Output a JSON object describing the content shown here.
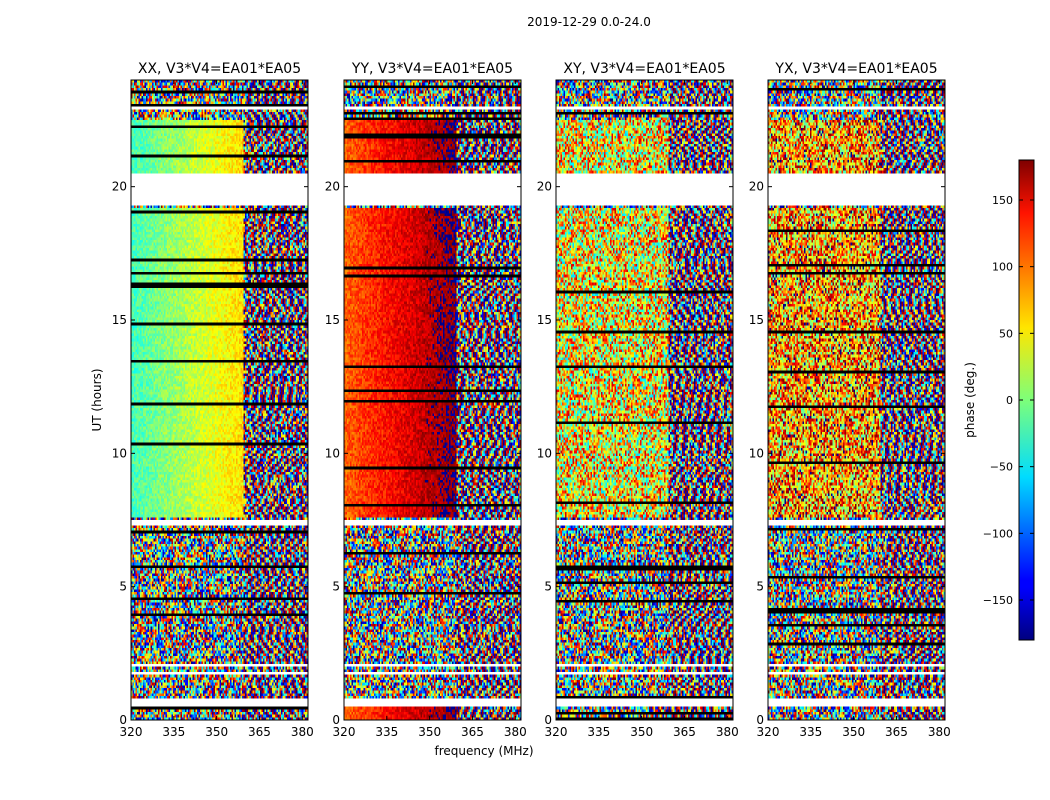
{
  "chart_data": {
    "type": "heatmap",
    "suptitle": "2019-12-29 0.0-24.0",
    "xlabel": "frequency (MHz)",
    "ylabel": "UT (hours)",
    "xlim": [
      320,
      382
    ],
    "ylim": [
      0,
      24
    ],
    "xticks": [
      320,
      335,
      350,
      365,
      380
    ],
    "yticks": [
      0,
      5,
      10,
      15,
      20
    ],
    "panels": [
      {
        "title": "XX, V3*V4=EA01*EA05",
        "pol": "XX"
      },
      {
        "title": "YY, V3*V4=EA01*EA05",
        "pol": "YY"
      },
      {
        "title": "XY, V3*V4=EA01*EA05",
        "pol": "XY"
      },
      {
        "title": "YX, V3*V4=EA01*EA05",
        "pol": "YX"
      }
    ],
    "colorbar": {
      "label": "phase (deg.)",
      "range": [
        -180,
        180
      ],
      "ticks": [
        -150,
        -100,
        -50,
        0,
        50,
        100,
        150
      ],
      "tick_labels": [
        "−150",
        "−100",
        "−50",
        "0",
        "50",
        "100",
        "150"
      ],
      "colormap": "jet"
    },
    "data_gaps_ut": [
      [
        0.55,
        0.75
      ],
      [
        1.7,
        1.8
      ],
      [
        2.0,
        2.1
      ],
      [
        7.3,
        7.5
      ],
      [
        19.3,
        20.5
      ],
      [
        22.9,
        23.0
      ]
    ]
  }
}
